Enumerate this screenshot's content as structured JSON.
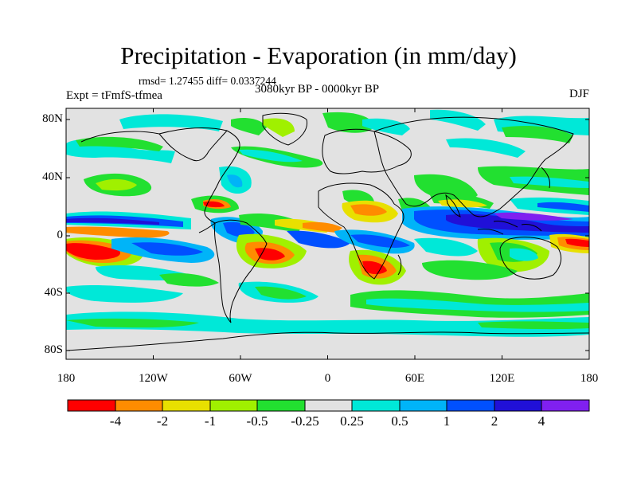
{
  "title": "Precipitation - Evaporation (in mm/day)",
  "stats": "rmsd= 1.27455 diff= 0.0337244",
  "experiment": "Expt = tFmfS-tfmea",
  "period": "3080kyr BP - 0000kyr BP",
  "season": "DJF",
  "y_ticks": [
    "80N",
    "40N",
    "0",
    "40S",
    "80S"
  ],
  "x_ticks": [
    "180",
    "120W",
    "60W",
    "0",
    "60E",
    "120E",
    "180"
  ],
  "colorbar": {
    "labels": [
      "-4",
      "-2",
      "-1",
      "-0.5",
      "-0.25",
      "0.25",
      "0.5",
      "1",
      "2",
      "4"
    ],
    "colors": [
      "#ff0000",
      "#ff8c00",
      "#e8e000",
      "#a0f000",
      "#22e030",
      "#e2e2e2",
      "#00e8d8",
      "#00b4f8",
      "#0050ff",
      "#2010d8",
      "#8020f0"
    ]
  },
  "map_colors": {
    "ocean_neutral": "#e2e2e2",
    "coastline": "#000000"
  }
}
